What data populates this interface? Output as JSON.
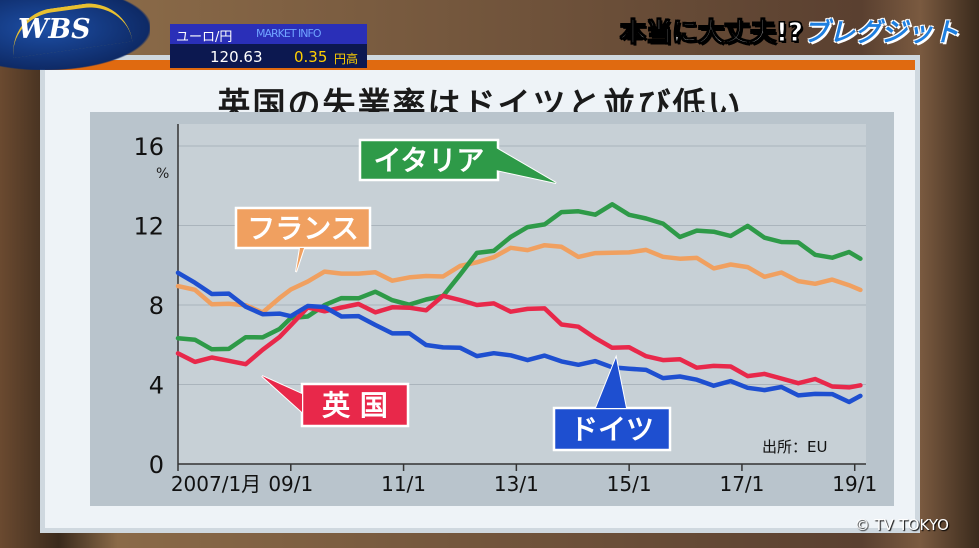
{
  "broadcast": {
    "logo": "WBS",
    "corner_title_main": "本当に大丈夫!?",
    "corner_title_accent": "ブレグジット",
    "copyright": "© TV TOKYO"
  },
  "ticker": {
    "label": "ユーロ/円",
    "scroll_text": "MARKET INFO",
    "rate": "120.63",
    "change": "0.35",
    "change_unit": "円高"
  },
  "colors": {
    "uk": "#e8284a",
    "germany": "#1e4fd0",
    "italy": "#2e9a48",
    "france": "#f0a060"
  },
  "chart_data": {
    "type": "line",
    "title": "英国の失業率はドイツと並び低い",
    "ylabel": "%",
    "source": "出所：EU",
    "ylim": [
      0,
      16
    ],
    "yticks": [
      0,
      4,
      8,
      12,
      16
    ],
    "xlim": [
      2007.0,
      2019.2
    ],
    "xticks": [
      {
        "x": 2007.0,
        "label": "2007/1月"
      },
      {
        "x": 2009.0,
        "label": "09/1"
      },
      {
        "x": 2011.0,
        "label": "11/1"
      },
      {
        "x": 2013.0,
        "label": "13/1"
      },
      {
        "x": 2015.0,
        "label": "15/1"
      },
      {
        "x": 2017.0,
        "label": "17/1"
      },
      {
        "x": 2019.0,
        "label": "19/1"
      }
    ],
    "series": [
      {
        "name": "フランス",
        "key": "france",
        "x": [
          2007.0,
          2007.3,
          2007.6,
          2007.9,
          2008.2,
          2008.5,
          2008.8,
          2009.0,
          2009.3,
          2009.6,
          2009.9,
          2010.2,
          2010.5,
          2010.8,
          2011.1,
          2011.4,
          2011.7,
          2012.0,
          2012.3,
          2012.6,
          2012.9,
          2013.2,
          2013.5,
          2013.8,
          2014.1,
          2014.4,
          2014.7,
          2015.0,
          2015.3,
          2015.6,
          2015.9,
          2016.2,
          2016.5,
          2016.8,
          2017.1,
          2017.4,
          2017.7,
          2018.0,
          2018.3,
          2018.6,
          2018.9,
          2019.1
        ],
        "values": [
          9.0,
          8.6,
          8.2,
          8.0,
          7.9,
          7.8,
          8.2,
          8.8,
          9.3,
          9.5,
          9.7,
          9.6,
          9.5,
          9.4,
          9.3,
          9.4,
          9.6,
          9.8,
          10.2,
          10.5,
          10.7,
          10.9,
          11.0,
          10.8,
          10.6,
          10.5,
          10.6,
          10.8,
          10.6,
          10.5,
          10.4,
          10.2,
          10.0,
          10.0,
          9.8,
          9.6,
          9.5,
          9.2,
          9.2,
          9.1,
          9.1,
          8.8
        ]
      },
      {
        "name": "イタリア",
        "key": "italy",
        "x": [
          2007.0,
          2007.3,
          2007.6,
          2007.9,
          2008.2,
          2008.5,
          2008.8,
          2009.0,
          2009.3,
          2009.6,
          2009.9,
          2010.2,
          2010.5,
          2010.8,
          2011.1,
          2011.4,
          2011.7,
          2012.0,
          2012.3,
          2012.6,
          2012.9,
          2013.2,
          2013.5,
          2013.8,
          2014.1,
          2014.4,
          2014.7,
          2015.0,
          2015.3,
          2015.6,
          2015.9,
          2016.2,
          2016.5,
          2016.8,
          2017.1,
          2017.4,
          2017.7,
          2018.0,
          2018.3,
          2018.6,
          2018.9,
          2019.1
        ],
        "values": [
          6.5,
          6.1,
          5.8,
          5.9,
          6.2,
          6.5,
          6.8,
          7.2,
          7.6,
          7.9,
          8.3,
          8.5,
          8.5,
          8.3,
          8.1,
          8.1,
          8.6,
          9.5,
          10.5,
          10.9,
          11.3,
          11.9,
          12.2,
          12.5,
          12.8,
          12.6,
          12.9,
          12.7,
          12.3,
          12.0,
          11.6,
          11.6,
          11.7,
          11.6,
          11.8,
          11.5,
          11.2,
          11.0,
          10.7,
          10.3,
          10.6,
          10.5
        ]
      },
      {
        "name": "英国",
        "key": "uk",
        "x": [
          2007.0,
          2007.3,
          2007.6,
          2007.9,
          2008.2,
          2008.5,
          2008.8,
          2009.0,
          2009.3,
          2009.6,
          2009.9,
          2010.2,
          2010.5,
          2010.8,
          2011.1,
          2011.4,
          2011.7,
          2012.0,
          2012.3,
          2012.6,
          2012.9,
          2013.2,
          2013.5,
          2013.8,
          2014.1,
          2014.4,
          2014.7,
          2015.0,
          2015.3,
          2015.6,
          2015.9,
          2016.2,
          2016.5,
          2016.8,
          2017.1,
          2017.4,
          2017.7,
          2018.0,
          2018.3,
          2018.6,
          2018.9,
          2019.1
        ],
        "values": [
          5.4,
          5.3,
          5.3,
          5.1,
          5.2,
          5.6,
          6.4,
          7.1,
          7.7,
          7.8,
          7.9,
          7.9,
          7.8,
          7.8,
          7.8,
          7.9,
          8.3,
          8.3,
          8.1,
          7.9,
          7.8,
          7.8,
          7.7,
          7.2,
          6.8,
          6.3,
          6.0,
          5.7,
          5.5,
          5.3,
          5.1,
          5.0,
          4.9,
          4.8,
          4.6,
          4.4,
          4.3,
          4.2,
          4.1,
          4.0,
          3.9,
          3.8
        ]
      },
      {
        "name": "ドイツ",
        "key": "germany",
        "x": [
          2007.0,
          2007.3,
          2007.6,
          2007.9,
          2008.2,
          2008.5,
          2008.8,
          2009.0,
          2009.3,
          2009.6,
          2009.9,
          2010.2,
          2010.5,
          2010.8,
          2011.1,
          2011.4,
          2011.7,
          2012.0,
          2012.3,
          2012.6,
          2012.9,
          2013.2,
          2013.5,
          2013.8,
          2014.1,
          2014.4,
          2014.7,
          2015.0,
          2015.3,
          2015.6,
          2015.9,
          2016.2,
          2016.5,
          2016.8,
          2017.1,
          2017.4,
          2017.7,
          2018.0,
          2018.3,
          2018.6,
          2018.9,
          2019.1
        ],
        "values": [
          9.5,
          9.1,
          8.7,
          8.4,
          8.0,
          7.6,
          7.4,
          7.6,
          7.9,
          7.8,
          7.6,
          7.3,
          7.0,
          6.7,
          6.4,
          6.1,
          5.9,
          5.7,
          5.6,
          5.5,
          5.4,
          5.4,
          5.3,
          5.2,
          5.1,
          5.0,
          5.0,
          4.8,
          4.6,
          4.5,
          4.3,
          4.2,
          4.1,
          4.0,
          3.9,
          3.8,
          3.7,
          3.6,
          3.5,
          3.4,
          3.3,
          3.3
        ]
      }
    ],
    "callouts": {
      "france": "フランス",
      "italy": "イタリア",
      "uk": "英 国",
      "germany": "ドイツ"
    }
  }
}
